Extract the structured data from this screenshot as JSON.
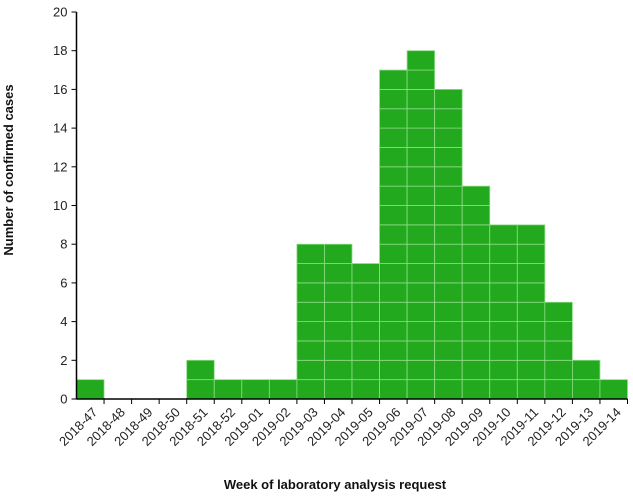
{
  "chart_data": {
    "type": "bar",
    "title": "",
    "xlabel": "Week of laboratory analysis request",
    "ylabel": "Number of confirmed cases",
    "ylim": [
      0,
      20
    ],
    "yticks": [
      0,
      2,
      4,
      6,
      8,
      10,
      12,
      14,
      16,
      18,
      20
    ],
    "grid": false,
    "bar_color": "#22a91e",
    "categories": [
      "2018-47",
      "2018-48",
      "2018-49",
      "2018-50",
      "2018-51",
      "2018-52",
      "2019-01",
      "2019-02",
      "2019-03",
      "2019-04",
      "2019-05",
      "2019-06",
      "2019-07",
      "2019-08",
      "2019-09",
      "2019-10",
      "2019-11",
      "2019-12",
      "2019-13",
      "2019-14"
    ],
    "values": [
      1,
      0,
      0,
      0,
      2,
      1,
      1,
      1,
      8,
      8,
      7,
      17,
      18,
      16,
      11,
      9,
      9,
      5,
      2,
      1
    ]
  }
}
